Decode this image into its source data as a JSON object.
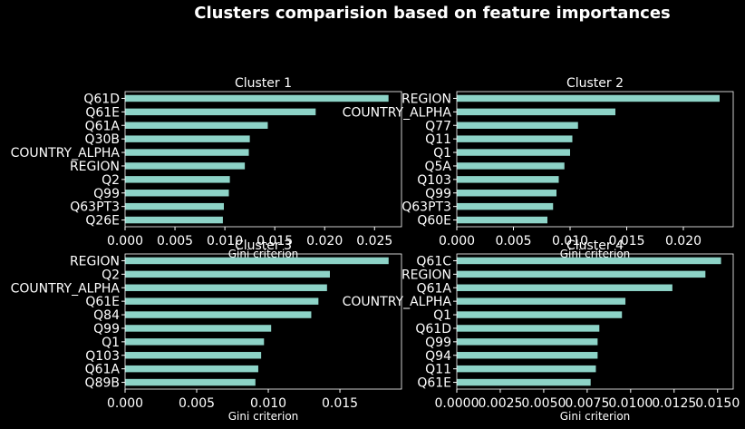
{
  "suptitle": "Clusters comparision based on feature importances",
  "colors": {
    "background": "#000000",
    "bar": "#8dd3c7",
    "text": "#ffffff",
    "axes": "#ffffff"
  },
  "chart_data": [
    {
      "type": "bar",
      "orientation": "horizontal",
      "title": "Cluster 1",
      "xlabel": "Gini criterion",
      "categories": [
        "Q61D",
        "Q61E",
        "Q61A",
        "Q30B",
        "COUNTRY_ALPHA",
        "REGION",
        "Q2",
        "Q99",
        "Q63PT3",
        "Q26E"
      ],
      "values": [
        0.0264,
        0.0191,
        0.0143,
        0.0125,
        0.0124,
        0.012,
        0.0105,
        0.0104,
        0.0099,
        0.0098
      ],
      "xlim": [
        0,
        0.0277
      ],
      "xticks": [
        "0.000",
        "0.005",
        "0.010",
        "0.015",
        "0.020",
        "0.025"
      ],
      "xtick_values": [
        0,
        0.005,
        0.01,
        0.015,
        0.02,
        0.025
      ]
    },
    {
      "type": "bar",
      "orientation": "horizontal",
      "title": "Cluster 2",
      "xlabel": "Gini criterion",
      "categories": [
        "REGION",
        "COUNTRY_ALPHA",
        "Q77",
        "Q11",
        "Q1",
        "Q5A",
        "Q103",
        "Q99",
        "Q63PT3",
        "Q60E"
      ],
      "values": [
        0.0232,
        0.014,
        0.0107,
        0.0102,
        0.01,
        0.0095,
        0.009,
        0.0088,
        0.0085,
        0.008
      ],
      "xlim": [
        0,
        0.0244
      ],
      "xticks": [
        "0.000",
        "0.005",
        "0.010",
        "0.015",
        "0.020"
      ],
      "xtick_values": [
        0,
        0.005,
        0.01,
        0.015,
        0.02
      ]
    },
    {
      "type": "bar",
      "orientation": "horizontal",
      "title": "Cluster 3",
      "xlabel": "Gini criterion",
      "categories": [
        "REGION",
        "Q2",
        "COUNTRY_ALPHA",
        "Q61E",
        "Q84",
        "Q99",
        "Q1",
        "Q103",
        "Q61A",
        "Q89B"
      ],
      "values": [
        0.0184,
        0.0143,
        0.0141,
        0.0135,
        0.013,
        0.0102,
        0.0097,
        0.0095,
        0.0093,
        0.0091
      ],
      "xlim": [
        0,
        0.0193
      ],
      "xticks": [
        "0.000",
        "0.005",
        "0.010",
        "0.015"
      ],
      "xtick_values": [
        0,
        0.005,
        0.01,
        0.015
      ]
    },
    {
      "type": "bar",
      "orientation": "horizontal",
      "title": "Cluster 4",
      "xlabel": "Gini criterion",
      "categories": [
        "Q61C",
        "REGION",
        "Q61A",
        "COUNTRY_ALPHA",
        "Q1",
        "Q61D",
        "Q99",
        "Q94",
        "Q11",
        "Q61E"
      ],
      "values": [
        0.0152,
        0.0143,
        0.0124,
        0.0097,
        0.0095,
        0.0082,
        0.0081,
        0.0081,
        0.008,
        0.0077
      ],
      "xlim": [
        0,
        0.0159
      ],
      "xticks": [
        "0.0000",
        "0.0025",
        "0.0050",
        "0.0075",
        "0.0100",
        "0.0125",
        "0.0150"
      ],
      "xtick_values": [
        0,
        0.0025,
        0.005,
        0.0075,
        0.01,
        0.0125,
        0.015
      ]
    }
  ]
}
